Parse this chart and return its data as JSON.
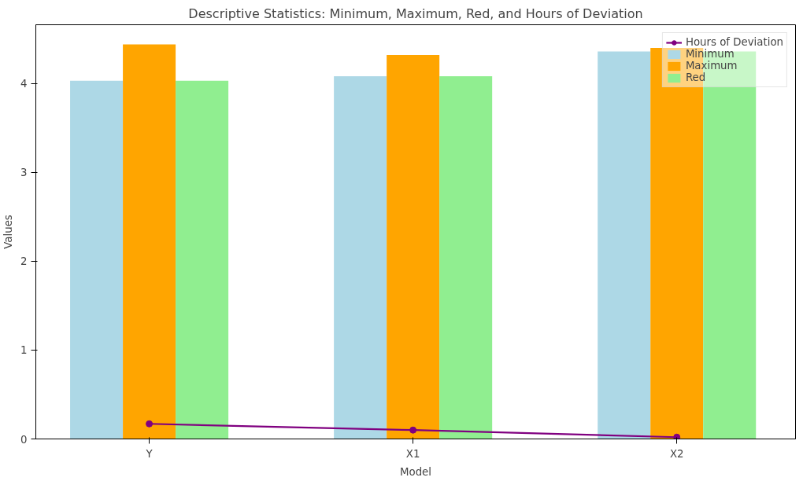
{
  "chart_data": {
    "type": "bar",
    "title": "Descriptive Statistics: Minimum, Maximum, Red, and Hours of Deviation",
    "xlabel": "Model",
    "ylabel": "Values",
    "categories": [
      "Y",
      "X1",
      "X2"
    ],
    "series": [
      {
        "name": "Hours of Deviation",
        "type": "line",
        "color": "#800080",
        "values": [
          0.17,
          0.1,
          0.02
        ],
        "marker": "circle",
        "line_style": "solid"
      },
      {
        "name": "Minimum",
        "color": "#add8e6",
        "values": [
          4.03,
          4.08,
          4.36
        ]
      },
      {
        "name": "Maximum",
        "color": "#ffa500",
        "values": [
          4.44,
          4.32,
          4.4
        ]
      },
      {
        "name": "Red",
        "color": "#90ee90",
        "values": [
          4.03,
          4.08,
          4.36
        ]
      }
    ],
    "ylim": [
      0,
      4.66
    ],
    "yticks": [
      0,
      1,
      2,
      3,
      4
    ],
    "grid": false,
    "legend": "top right"
  }
}
